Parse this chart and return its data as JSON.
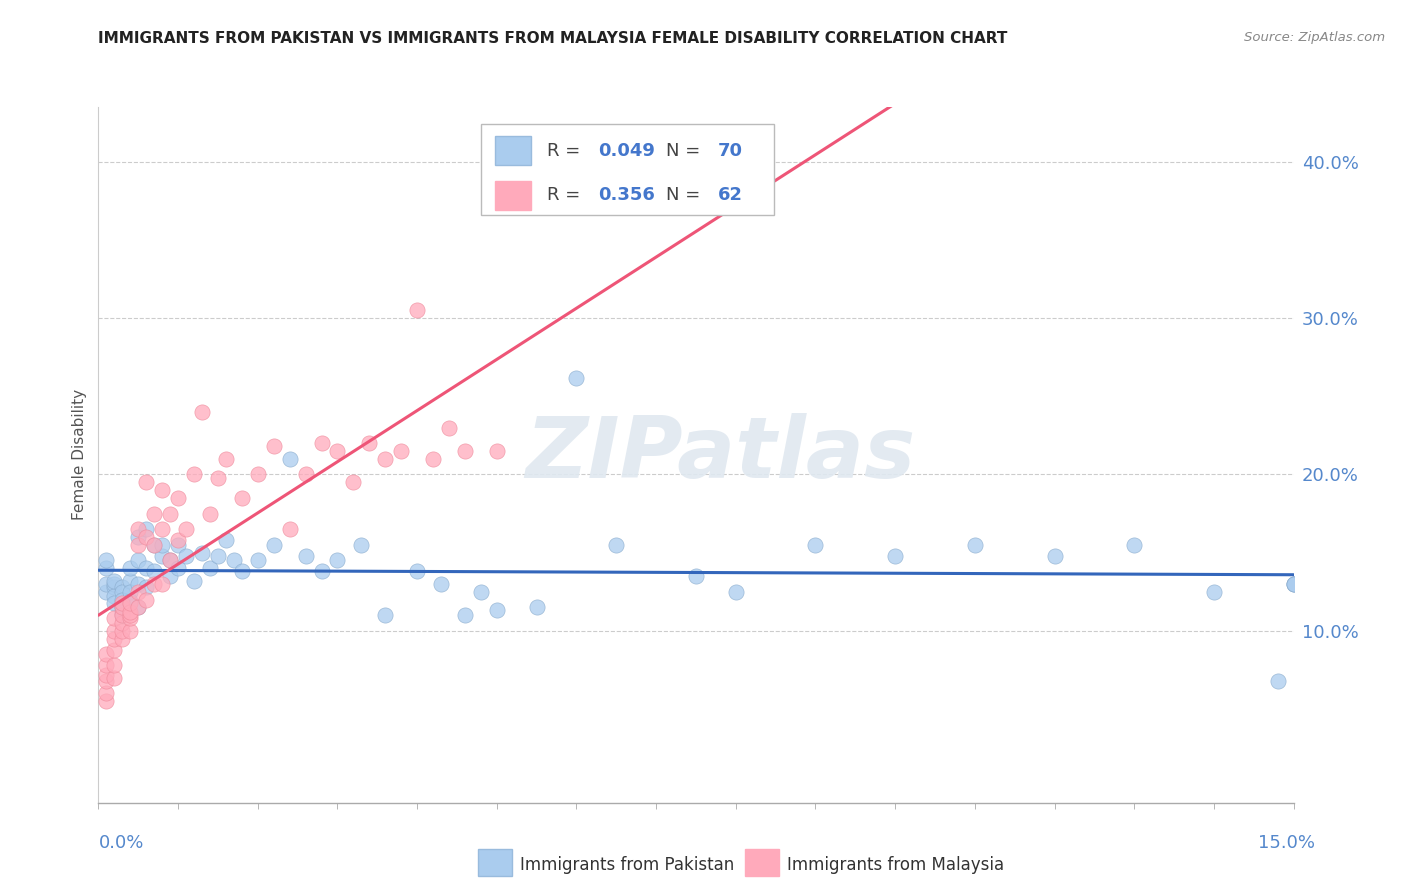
{
  "title": "IMMIGRANTS FROM PAKISTAN VS IMMIGRANTS FROM MALAYSIA FEMALE DISABILITY CORRELATION CHART",
  "source": "Source: ZipAtlas.com",
  "ylabel": "Female Disability",
  "ytick_labels": [
    "10.0%",
    "20.0%",
    "30.0%",
    "40.0%"
  ],
  "ytick_values": [
    0.1,
    0.2,
    0.3,
    0.4
  ],
  "xtick_left": "0.0%",
  "xtick_right": "15.0%",
  "xmin": 0.0,
  "xmax": 0.15,
  "ymin": -0.01,
  "ymax": 0.435,
  "pakistan_R": "0.049",
  "pakistan_N": "70",
  "malaysia_R": "0.356",
  "malaysia_N": "62",
  "color_pakistan": "#AACCEE",
  "color_malaysia": "#FFAABB",
  "color_line_pakistan": "#3366BB",
  "color_line_malaysia": "#EE5577",
  "watermark_text": "ZIPatlas",
  "legend_pakistan_label": "Immigrants from Pakistan",
  "legend_malaysia_label": "Immigrants from Malaysia",
  "pakistan_x": [
    0.001,
    0.001,
    0.001,
    0.001,
    0.002,
    0.002,
    0.002,
    0.002,
    0.002,
    0.003,
    0.003,
    0.003,
    0.003,
    0.003,
    0.003,
    0.004,
    0.004,
    0.004,
    0.004,
    0.005,
    0.005,
    0.005,
    0.005,
    0.006,
    0.006,
    0.006,
    0.007,
    0.007,
    0.008,
    0.008,
    0.009,
    0.009,
    0.01,
    0.01,
    0.011,
    0.012,
    0.013,
    0.014,
    0.015,
    0.016,
    0.017,
    0.018,
    0.02,
    0.022,
    0.024,
    0.026,
    0.028,
    0.03,
    0.033,
    0.036,
    0.04,
    0.043,
    0.046,
    0.048,
    0.05,
    0.055,
    0.06,
    0.065,
    0.075,
    0.08,
    0.09,
    0.1,
    0.11,
    0.12,
    0.13,
    0.14,
    0.148,
    0.15,
    0.15,
    0.15
  ],
  "pakistan_y": [
    0.125,
    0.13,
    0.14,
    0.145,
    0.128,
    0.13,
    0.122,
    0.118,
    0.132,
    0.128,
    0.125,
    0.12,
    0.115,
    0.112,
    0.11,
    0.132,
    0.125,
    0.119,
    0.14,
    0.145,
    0.16,
    0.115,
    0.13,
    0.14,
    0.128,
    0.165,
    0.155,
    0.138,
    0.148,
    0.155,
    0.135,
    0.145,
    0.155,
    0.14,
    0.148,
    0.132,
    0.15,
    0.14,
    0.148,
    0.158,
    0.145,
    0.138,
    0.145,
    0.155,
    0.21,
    0.148,
    0.138,
    0.145,
    0.155,
    0.11,
    0.138,
    0.13,
    0.11,
    0.125,
    0.113,
    0.115,
    0.262,
    0.155,
    0.135,
    0.125,
    0.155,
    0.148,
    0.155,
    0.148,
    0.155,
    0.125,
    0.068,
    0.13,
    0.13,
    0.13
  ],
  "malaysia_x": [
    0.001,
    0.001,
    0.001,
    0.001,
    0.001,
    0.001,
    0.002,
    0.002,
    0.002,
    0.002,
    0.002,
    0.002,
    0.003,
    0.003,
    0.003,
    0.003,
    0.003,
    0.003,
    0.004,
    0.004,
    0.004,
    0.004,
    0.004,
    0.005,
    0.005,
    0.005,
    0.005,
    0.006,
    0.006,
    0.006,
    0.007,
    0.007,
    0.007,
    0.008,
    0.008,
    0.008,
    0.009,
    0.009,
    0.01,
    0.01,
    0.011,
    0.012,
    0.013,
    0.014,
    0.015,
    0.016,
    0.018,
    0.02,
    0.022,
    0.024,
    0.026,
    0.028,
    0.03,
    0.032,
    0.034,
    0.036,
    0.038,
    0.04,
    0.042,
    0.044,
    0.046,
    0.05
  ],
  "malaysia_y": [
    0.055,
    0.06,
    0.068,
    0.072,
    0.078,
    0.085,
    0.07,
    0.078,
    0.088,
    0.095,
    0.1,
    0.108,
    0.095,
    0.1,
    0.105,
    0.11,
    0.115,
    0.118,
    0.1,
    0.108,
    0.11,
    0.112,
    0.118,
    0.115,
    0.125,
    0.155,
    0.165,
    0.12,
    0.16,
    0.195,
    0.13,
    0.155,
    0.175,
    0.13,
    0.165,
    0.19,
    0.145,
    0.175,
    0.158,
    0.185,
    0.165,
    0.2,
    0.24,
    0.175,
    0.198,
    0.21,
    0.185,
    0.2,
    0.218,
    0.165,
    0.2,
    0.22,
    0.215,
    0.195,
    0.22,
    0.21,
    0.215,
    0.305,
    0.21,
    0.23,
    0.215,
    0.215
  ]
}
